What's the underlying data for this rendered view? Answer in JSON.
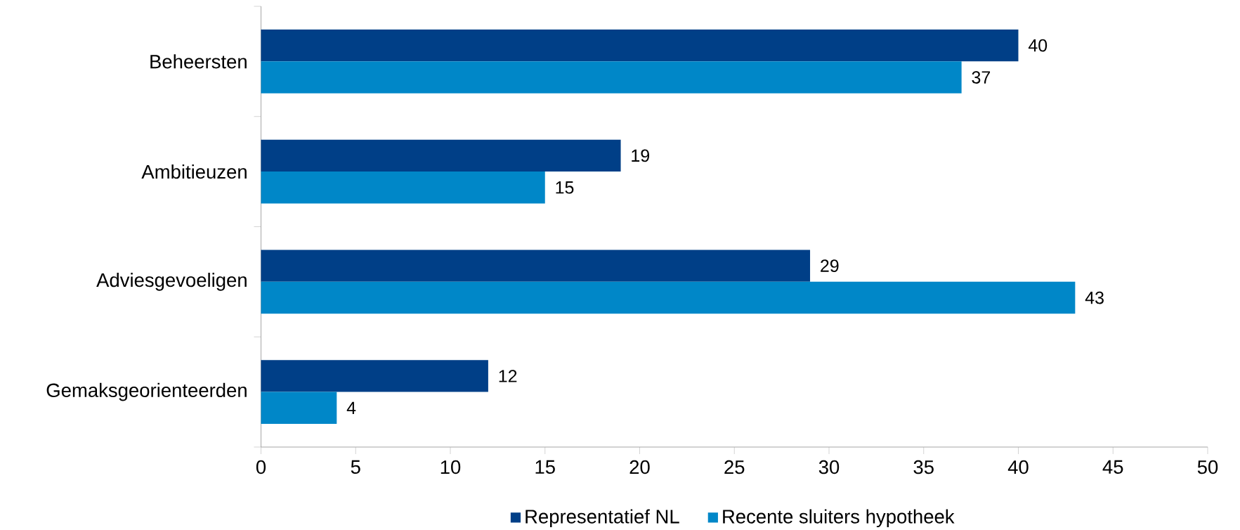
{
  "chart_data": {
    "type": "bar",
    "orientation": "horizontal",
    "categories": [
      "Beheersten",
      "Ambitieuzen",
      "Adviesgevoeligen",
      "Gemaksgeorienteerden"
    ],
    "series": [
      {
        "name": "Representatief NL",
        "color": "#003f87",
        "values": [
          40,
          19,
          29,
          12
        ]
      },
      {
        "name": "Recente sluiters hypotheek",
        "color": "#0087c8",
        "values": [
          37,
          15,
          43,
          4
        ]
      }
    ],
    "xlim": [
      0,
      50
    ],
    "xticks": [
      0,
      5,
      10,
      15,
      20,
      25,
      30,
      35,
      40,
      45,
      50
    ],
    "data_labels": true,
    "legend": "bottom",
    "grid": false
  }
}
